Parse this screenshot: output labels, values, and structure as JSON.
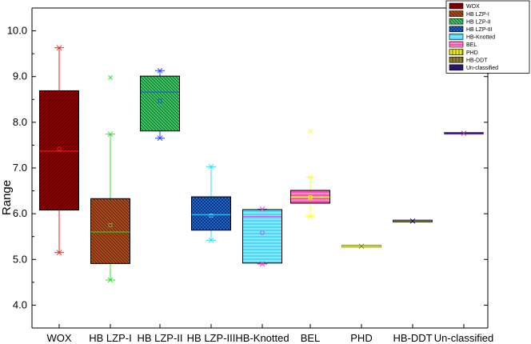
{
  "chart_data": {
    "type": "box",
    "title": "",
    "xlabel": "",
    "ylabel": "Range",
    "ylim": [
      3.5,
      10.5
    ],
    "yticks": [
      4,
      5,
      6,
      7,
      8,
      9,
      10
    ],
    "grid": false,
    "legend_position": "top-right",
    "categories": [
      "WOX",
      "HB LZP-I",
      "HB LZP-II",
      "HB LZP-III",
      "HB-Knotted",
      "BEL",
      "PHD",
      "HB-DDT",
      "Un-classified"
    ],
    "legend_labels": [
      "WOX",
      "HB LZP-I",
      "HB LZP-II",
      "HB LZP-III",
      "HB-Knotted",
      "BEL",
      "PHD",
      "HB-DDT",
      "Un-classified"
    ],
    "series": [
      {
        "category": "WOX",
        "min": 5.15,
        "q1": 6.08,
        "median": 7.37,
        "mean": 7.42,
        "q3": 8.69,
        "max": 9.63,
        "outliers": [],
        "fill": "#8b0000",
        "line": "#ff2020",
        "pattern": "diag-right"
      },
      {
        "category": "HB LZP-I",
        "min": 4.55,
        "q1": 4.91,
        "median": 5.6,
        "mean": 5.75,
        "q3": 6.33,
        "max": 7.74,
        "outliers": [
          8.98
        ],
        "fill": "#b84a10",
        "line": "#30e030",
        "pattern": "diag-left"
      },
      {
        "category": "HB LZP-II",
        "min": 7.65,
        "q1": 7.81,
        "median": 8.66,
        "mean": 8.47,
        "q3": 9.01,
        "max": 9.13,
        "outliers": [],
        "fill": "#30d060",
        "line": "#2040ff",
        "pattern": "diag-left"
      },
      {
        "category": "HB LZP-III",
        "min": 5.42,
        "q1": 5.64,
        "median": 5.98,
        "mean": 5.96,
        "q3": 6.37,
        "max": 7.03,
        "outliers": [],
        "fill": "#1e6ee8",
        "line": "#30e0ff",
        "pattern": "cross"
      },
      {
        "category": "HB-Knotted",
        "min": 4.9,
        "q1": 4.92,
        "median": 5.94,
        "mean": 5.58,
        "q3": 6.09,
        "max": 6.1,
        "outliers": [],
        "fill": "#4ad8f8",
        "line": "#e040e0",
        "pattern": "horiz"
      },
      {
        "category": "BEL",
        "min": 5.94,
        "q1": 6.23,
        "median": 6.36,
        "mean": 6.36,
        "q3": 6.51,
        "max": 6.8,
        "outliers": [
          7.8
        ],
        "fill": "#ff50b0",
        "line": "#ffff30",
        "pattern": "horiz"
      },
      {
        "category": "PHD",
        "min": 5.29,
        "q1": 5.29,
        "median": 5.29,
        "mean": 5.29,
        "q3": 5.29,
        "max": 5.29,
        "outliers": [],
        "fill": "#e8e820",
        "line": "#808020",
        "pattern": "vert"
      },
      {
        "category": "HB-DDT",
        "min": 5.84,
        "q1": 5.84,
        "median": 5.84,
        "mean": 5.84,
        "q3": 5.84,
        "max": 5.84,
        "outliers": [],
        "fill": "#8a8030",
        "line": "#000080",
        "pattern": "vert"
      },
      {
        "category": "Un-classified",
        "min": 7.76,
        "q1": 7.76,
        "median": 7.76,
        "mean": 7.76,
        "q3": 7.76,
        "max": 7.76,
        "outliers": [],
        "fill": "#301070",
        "line": "#a040a0",
        "pattern": "none"
      }
    ]
  }
}
